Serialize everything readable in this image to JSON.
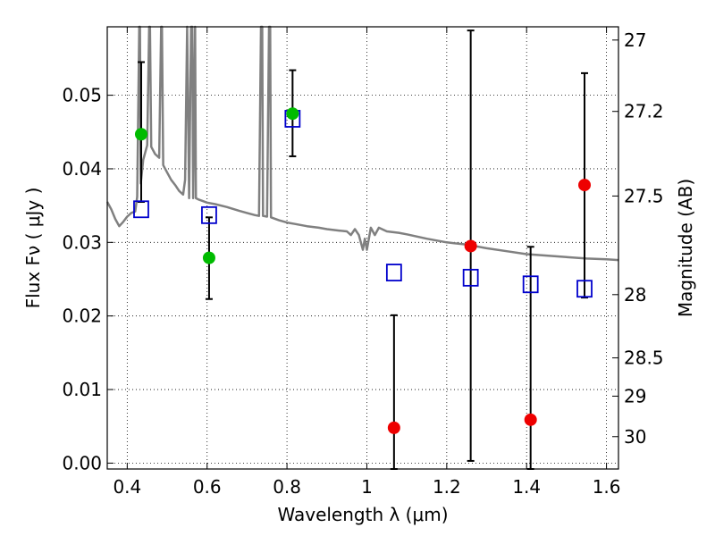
{
  "chart_data": {
    "type": "scatter",
    "xlabel": "Wavelength  λ (μm)",
    "ylabel": "Flux  Fν  ( μJy )",
    "ylabel_right": "Magnitude (AB)",
    "xlim": [
      0.35,
      1.63
    ],
    "ylim": [
      -0.0008,
      0.0593
    ],
    "x_ticks": [
      0.4,
      0.6,
      0.8,
      1.0,
      1.2,
      1.4,
      1.6
    ],
    "x_tick_labels": [
      "0.4",
      "0.6",
      "0.8",
      "1",
      "1.2",
      "1.4",
      "1.6"
    ],
    "y_ticks": [
      0.0,
      0.01,
      0.02,
      0.03,
      0.04,
      0.05
    ],
    "y_tick_labels": [
      "0.00",
      "0.01",
      "0.02",
      "0.03",
      "0.04",
      "0.05"
    ],
    "right_ticks": [
      {
        "label": "27",
        "flux": 0.0575
      },
      {
        "label": "27.2",
        "flux": 0.0478
      },
      {
        "label": "27.5",
        "flux": 0.0363
      },
      {
        "label": "28",
        "flux": 0.0229
      },
      {
        "label": "28.5",
        "flux": 0.0143
      },
      {
        "label": "29",
        "flux": 0.0091
      },
      {
        "label": "30",
        "flux": 0.0036
      }
    ],
    "grid": true,
    "grid_style": "dotted",
    "colors": {
      "model": "#808080",
      "green": "#00bb00",
      "red": "#ee0000",
      "square": "#0000cc",
      "errorbar": "#000000"
    },
    "observed_points": [
      {
        "x": 0.435,
        "y": 0.0447,
        "yerr_low": 0.0355,
        "yerr_high": 0.0545,
        "color": "green"
      },
      {
        "x": 0.605,
        "y": 0.0279,
        "yerr_low": 0.0223,
        "yerr_high": 0.0334,
        "color": "green"
      },
      {
        "x": 0.814,
        "y": 0.0475,
        "yerr_low": 0.0417,
        "yerr_high": 0.0534,
        "color": "green"
      },
      {
        "x": 1.068,
        "y": 0.0048,
        "yerr_low": -0.0008,
        "yerr_high": 0.0201,
        "color": "red"
      },
      {
        "x": 1.26,
        "y": 0.0295,
        "yerr_low": 0.0003,
        "yerr_high": 0.0588,
        "color": "red"
      },
      {
        "x": 1.41,
        "y": 0.0059,
        "yerr_low": -0.0008,
        "yerr_high": 0.0294,
        "color": "red"
      },
      {
        "x": 1.545,
        "y": 0.0378,
        "yerr_low": 0.0225,
        "yerr_high": 0.053,
        "color": "red"
      }
    ],
    "model_photometry": [
      {
        "x": 0.435,
        "y": 0.0345
      },
      {
        "x": 0.605,
        "y": 0.0337
      },
      {
        "x": 0.814,
        "y": 0.0468
      },
      {
        "x": 1.068,
        "y": 0.0259
      },
      {
        "x": 1.26,
        "y": 0.0252
      },
      {
        "x": 1.41,
        "y": 0.0243
      },
      {
        "x": 1.545,
        "y": 0.0237
      }
    ],
    "model_spectrum": [
      [
        0.35,
        0.0355
      ],
      [
        0.36,
        0.0345
      ],
      [
        0.37,
        0.0332
      ],
      [
        0.38,
        0.0322
      ],
      [
        0.39,
        0.0328
      ],
      [
        0.4,
        0.0335
      ],
      [
        0.41,
        0.034
      ],
      [
        0.42,
        0.0342
      ],
      [
        0.425,
        0.0362
      ],
      [
        0.43,
        0.0593
      ],
      [
        0.432,
        0.0593
      ],
      [
        0.434,
        0.038
      ],
      [
        0.44,
        0.0412
      ],
      [
        0.45,
        0.0432
      ],
      [
        0.455,
        0.0593
      ],
      [
        0.457,
        0.0593
      ],
      [
        0.46,
        0.043
      ],
      [
        0.47,
        0.042
      ],
      [
        0.48,
        0.0415
      ],
      [
        0.485,
        0.0593
      ],
      [
        0.487,
        0.0593
      ],
      [
        0.49,
        0.0405
      ],
      [
        0.5,
        0.0395
      ],
      [
        0.51,
        0.0385
      ],
      [
        0.52,
        0.0378
      ],
      [
        0.53,
        0.037
      ],
      [
        0.54,
        0.0365
      ],
      [
        0.545,
        0.0385
      ],
      [
        0.55,
        0.0593
      ],
      [
        0.555,
        0.036
      ],
      [
        0.56,
        0.0593
      ],
      [
        0.563,
        0.0593
      ],
      [
        0.565,
        0.036
      ],
      [
        0.57,
        0.0593
      ],
      [
        0.572,
        0.036
      ],
      [
        0.58,
        0.0358
      ],
      [
        0.59,
        0.0356
      ],
      [
        0.6,
        0.0354
      ],
      [
        0.62,
        0.0352
      ],
      [
        0.65,
        0.0348
      ],
      [
        0.68,
        0.0343
      ],
      [
        0.7,
        0.034
      ],
      [
        0.72,
        0.0337
      ],
      [
        0.73,
        0.0336
      ],
      [
        0.735,
        0.0593
      ],
      [
        0.738,
        0.0593
      ],
      [
        0.74,
        0.0336
      ],
      [
        0.75,
        0.0335
      ],
      [
        0.755,
        0.0593
      ],
      [
        0.758,
        0.0593
      ],
      [
        0.76,
        0.0334
      ],
      [
        0.78,
        0.033
      ],
      [
        0.8,
        0.0327
      ],
      [
        0.82,
        0.0325
      ],
      [
        0.85,
        0.0322
      ],
      [
        0.88,
        0.032
      ],
      [
        0.9,
        0.0318
      ],
      [
        0.93,
        0.0316
      ],
      [
        0.95,
        0.0315
      ],
      [
        0.96,
        0.031
      ],
      [
        0.97,
        0.0318
      ],
      [
        0.98,
        0.031
      ],
      [
        0.99,
        0.029
      ],
      [
        0.995,
        0.0305
      ],
      [
        1.0,
        0.029
      ],
      [
        1.01,
        0.032
      ],
      [
        1.02,
        0.031
      ],
      [
        1.03,
        0.032
      ],
      [
        1.05,
        0.0315
      ],
      [
        1.08,
        0.0313
      ],
      [
        1.1,
        0.0311
      ],
      [
        1.15,
        0.0305
      ],
      [
        1.2,
        0.03
      ],
      [
        1.25,
        0.0297
      ],
      [
        1.3,
        0.0292
      ],
      [
        1.35,
        0.0288
      ],
      [
        1.4,
        0.0284
      ],
      [
        1.45,
        0.0282
      ],
      [
        1.5,
        0.028
      ],
      [
        1.55,
        0.0278
      ],
      [
        1.6,
        0.0277
      ],
      [
        1.63,
        0.0276
      ]
    ]
  }
}
